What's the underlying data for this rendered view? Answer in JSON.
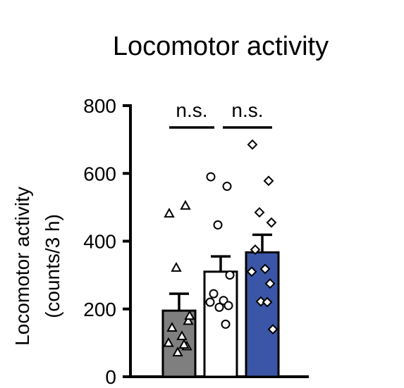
{
  "chart_data": {
    "type": "bar",
    "title": "Locomotor activity",
    "ylabel_line1": "Locomotor activity",
    "ylabel_line2": "(counts/3 h)",
    "ylim": [
      0,
      800
    ],
    "yticks": [
      0,
      200,
      400,
      600,
      800
    ],
    "yticks_text": [
      "0",
      "200",
      "400",
      "600",
      "800"
    ],
    "grid": false,
    "legend": "none",
    "groups": [
      {
        "mean": 195,
        "sem": 50,
        "color": "#7f7f7f",
        "marker": "triangle",
        "points": [
          482,
          505,
          322,
          165,
          145,
          120,
          100,
          90,
          72,
          95,
          180
        ]
      },
      {
        "mean": 310,
        "sem": 45,
        "color": "#ffffff",
        "marker": "circle",
        "points": [
          590,
          562,
          448,
          300,
          245,
          225,
          220,
          210,
          205,
          155
        ]
      },
      {
        "mean": 367,
        "sem": 52,
        "color": "#3b56a6",
        "marker": "diamond",
        "points": [
          685,
          578,
          485,
          455,
          375,
          318,
          310,
          275,
          222,
          220,
          140
        ]
      }
    ],
    "comparisons": [
      {
        "label": "n.s."
      },
      {
        "label": "n.s."
      }
    ]
  }
}
